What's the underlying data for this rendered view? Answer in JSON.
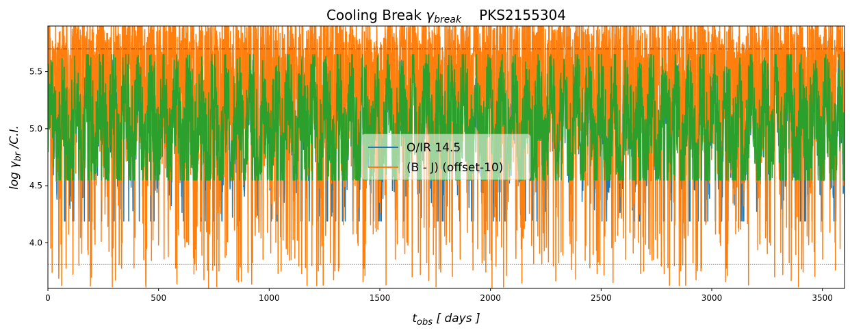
{
  "chart_data": {
    "type": "line",
    "title": "Cooling Break γbreak    PKS2155304",
    "title_parts": {
      "prefix": "Cooling Break ",
      "symbol": "γ",
      "subscript": "break",
      "suffix": "PKS2155304"
    },
    "xlabel_parts": {
      "base": "t",
      "sub": "obs",
      "rest": " [ days ]"
    },
    "ylabel_parts": {
      "pre": "log γ",
      "sub": "br",
      "rest": " /C.I."
    },
    "xlim": [
      0,
      3600
    ],
    "ylim": [
      3.6,
      5.9
    ],
    "xticks": [
      0,
      500,
      1000,
      1500,
      2000,
      2500,
      3000,
      3500
    ],
    "yticks": [
      4.0,
      4.5,
      5.0,
      5.5
    ],
    "xtick_labels": [
      "0",
      "500",
      "1000",
      "1500",
      "2000",
      "2500",
      "3000",
      "3500"
    ],
    "ytick_labels": [
      "4.0",
      "4.5",
      "5.0",
      "5.5"
    ],
    "hlines": [
      {
        "y": 5.7,
        "style": "dashdot",
        "color": "#333333"
      },
      {
        "y": 3.81,
        "style": "dotted",
        "color": "#333333"
      }
    ],
    "series": [
      {
        "name": "O/IR 14.5",
        "color": "#1f77b4",
        "x_range": [
          0,
          3600
        ],
        "y_range_typical": [
          4.19,
          5.6
        ],
        "y_min_observed": 3.8
      },
      {
        "name": "(B - J)  (offset-10)",
        "color": "#ff7f0e",
        "x_range": [
          0,
          3600
        ],
        "y_range_typical": [
          3.6,
          5.9
        ]
      },
      {
        "color": "#2ca02c",
        "x_range": [
          0,
          3600
        ],
        "y_range_typical": [
          4.55,
          5.65
        ]
      }
    ],
    "legend_location": "center",
    "grid": false
  }
}
